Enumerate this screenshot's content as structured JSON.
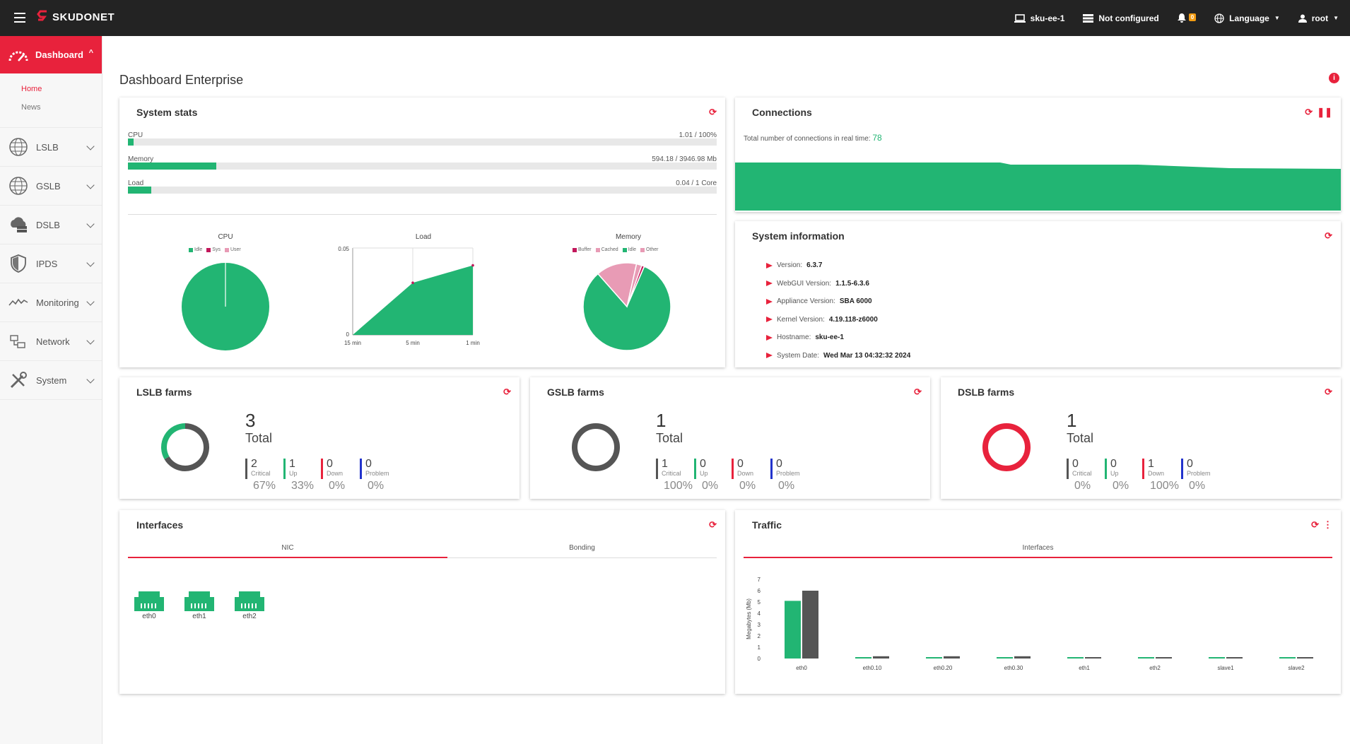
{
  "topbar": {
    "brand": "SKUDONET",
    "host": "sku-ee-1",
    "cluster": "Not configured",
    "notif_count": "0",
    "language": "Language",
    "user": "root"
  },
  "sidebar": {
    "dashboard": "Dashboard",
    "sub": {
      "home": "Home",
      "news": "News"
    },
    "items": [
      "LSLB",
      "GSLB",
      "DSLB",
      "IPDS",
      "Monitoring",
      "Network",
      "System"
    ]
  },
  "page_title": "Dashboard Enterprise",
  "system_stats": {
    "title": "System stats",
    "bars": [
      {
        "label": "CPU",
        "value": "1.01 / 100%",
        "pct": 0.0101
      },
      {
        "label": "Memory",
        "value": "594.18 / 3946.98 Mb",
        "pct": 0.15
      },
      {
        "label": "Load",
        "value": "0.04 / 1 Core",
        "pct": 0.04
      }
    ],
    "cpu_chart": {
      "title": "CPU",
      "legend": [
        "Idle",
        "Sys",
        "User"
      ],
      "colors": [
        "#22b573",
        "#c2185b",
        "#e89bb5"
      ]
    },
    "load_chart": {
      "title": "Load",
      "y_ticks": [
        "0.05",
        "0"
      ],
      "x_ticks": [
        "15 min",
        "5 min",
        "1 min"
      ]
    },
    "mem_chart": {
      "title": "Memory",
      "legend": [
        "Buffer",
        "Cached",
        "Idle",
        "Other"
      ],
      "colors": [
        "#c2185b",
        "#e89bb5",
        "#22b573",
        "#e89bb5"
      ]
    }
  },
  "chart_data": [
    {
      "type": "pie",
      "title": "CPU",
      "labels": [
        "Idle",
        "Sys",
        "User"
      ],
      "values": [
        99,
        0.5,
        0.5
      ]
    },
    {
      "type": "area",
      "title": "Load",
      "x": [
        "15 min",
        "5 min",
        "1 min"
      ],
      "y": [
        0,
        0.03,
        0.04
      ],
      "ylim": [
        0,
        0.05
      ]
    },
    {
      "type": "pie",
      "title": "Memory",
      "labels": [
        "Buffer",
        "Cached",
        "Idle",
        "Other"
      ],
      "values": [
        1,
        15,
        82,
        2
      ]
    },
    {
      "type": "bar",
      "categories": [
        "eth0",
        "eth0.10",
        "eth0.20",
        "eth0.30",
        "eth1",
        "eth2",
        "slave1",
        "slave2"
      ],
      "ylabel": "Megabytes (Mb)",
      "ylim": [
        0,
        7
      ],
      "y_ticks": [
        "7",
        "6",
        "5",
        "4",
        "3",
        "2",
        "1",
        "0"
      ],
      "series": [
        {
          "values": [
            5.1,
            0,
            0,
            0,
            0,
            0,
            0,
            0
          ]
        },
        {
          "values": [
            6,
            0.2,
            0.2,
            0.2,
            0.1,
            0.1,
            0.1,
            0.1
          ]
        }
      ]
    }
  ],
  "connections": {
    "title": "Connections",
    "label": "Total number of connections in real time:",
    "value": "78"
  },
  "system_info": {
    "title": "System information",
    "rows": [
      {
        "k": "Version:",
        "v": "6.3.7"
      },
      {
        "k": "WebGUI Version:",
        "v": "1.1.5-6.3.6"
      },
      {
        "k": "Appliance Version:",
        "v": "SBA 6000"
      },
      {
        "k": "Kernel Version:",
        "v": "4.19.118-z6000"
      },
      {
        "k": "Hostname:",
        "v": "sku-ee-1"
      },
      {
        "k": "System Date:",
        "v": "Wed Mar 13 04:32:32 2024"
      }
    ]
  },
  "farms": [
    {
      "title": "LSLB farms",
      "total": "3",
      "total_label": "Total",
      "stats": [
        {
          "n": "2",
          "l": "Critical",
          "p": "67%"
        },
        {
          "n": "1",
          "l": "Up",
          "p": "33%"
        },
        {
          "n": "0",
          "l": "Down",
          "p": "0%"
        },
        {
          "n": "0",
          "l": "Problem",
          "p": "0%"
        }
      ]
    },
    {
      "title": "GSLB farms",
      "total": "1",
      "total_label": "Total",
      "stats": [
        {
          "n": "1",
          "l": "Critical",
          "p": "100%"
        },
        {
          "n": "0",
          "l": "Up",
          "p": "0%"
        },
        {
          "n": "0",
          "l": "Down",
          "p": "0%"
        },
        {
          "n": "0",
          "l": "Problem",
          "p": "0%"
        }
      ]
    },
    {
      "title": "DSLB farms",
      "total": "1",
      "total_label": "Total",
      "stats": [
        {
          "n": "0",
          "l": "Critical",
          "p": "0%"
        },
        {
          "n": "0",
          "l": "Up",
          "p": "0%"
        },
        {
          "n": "1",
          "l": "Down",
          "p": "100%"
        },
        {
          "n": "0",
          "l": "Problem",
          "p": "0%"
        }
      ]
    }
  ],
  "stat_colors": [
    "#555555",
    "#22b573",
    "#e8223c",
    "#2233cc"
  ],
  "interfaces": {
    "title": "Interfaces",
    "tabs": [
      "NIC",
      "Bonding"
    ],
    "nics": [
      "eth0",
      "eth1",
      "eth2"
    ]
  },
  "traffic": {
    "title": "Traffic",
    "tab": "Interfaces"
  }
}
